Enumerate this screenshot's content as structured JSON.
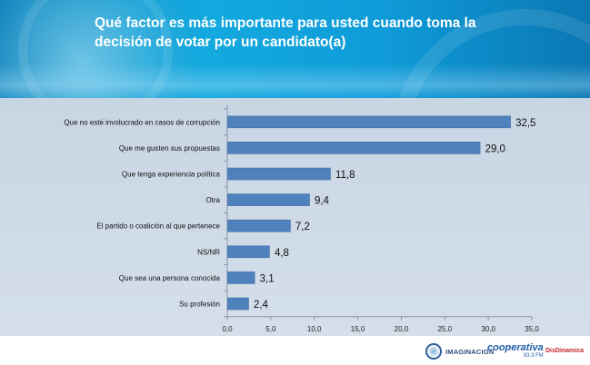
{
  "title": "Qué factor es más importante para usted cuando toma la decisión de votar por un candidato(a)",
  "chart_data": {
    "type": "bar",
    "orientation": "horizontal",
    "title": "Qué factor es más importante para usted cuando toma la decisión de votar por un candidato(a)",
    "categories": [
      "Que no esté involucrado en casos de corrupción",
      "Que me gusten sus propuestas",
      "Que tenga experiencia política",
      "Otra",
      "El partido o coalición al que pertenece",
      "NS/NR",
      "Que sea una persona conocida",
      "Su profesión"
    ],
    "values": [
      32.5,
      29.0,
      11.8,
      9.4,
      7.2,
      4.8,
      3.1,
      2.4
    ],
    "value_labels": [
      "32,5",
      "29,0",
      "11,8",
      "9,4",
      "7,2",
      "4,8",
      "3,1",
      "2,4"
    ],
    "xlim": [
      0,
      35
    ],
    "xticks": [
      0,
      5,
      10,
      15,
      20,
      25,
      30,
      35
    ],
    "xtick_labels": [
      "0,0",
      "5,0",
      "10,0",
      "15,0",
      "20,0",
      "25,0",
      "30,0",
      "35,0"
    ],
    "xlabel": "",
    "ylabel": "",
    "bar_color": "#4f81bd",
    "grid": false
  },
  "footer": {
    "logos": [
      {
        "name": "IMAGINACION",
        "icon": "imaginacion-logo"
      },
      {
        "name": "cooperativa",
        "sub": "93.3 FM",
        "icon": "cooperativa-logo"
      },
      {
        "name": "DisDinamica",
        "icon": "disdinamica-logo"
      }
    ]
  }
}
